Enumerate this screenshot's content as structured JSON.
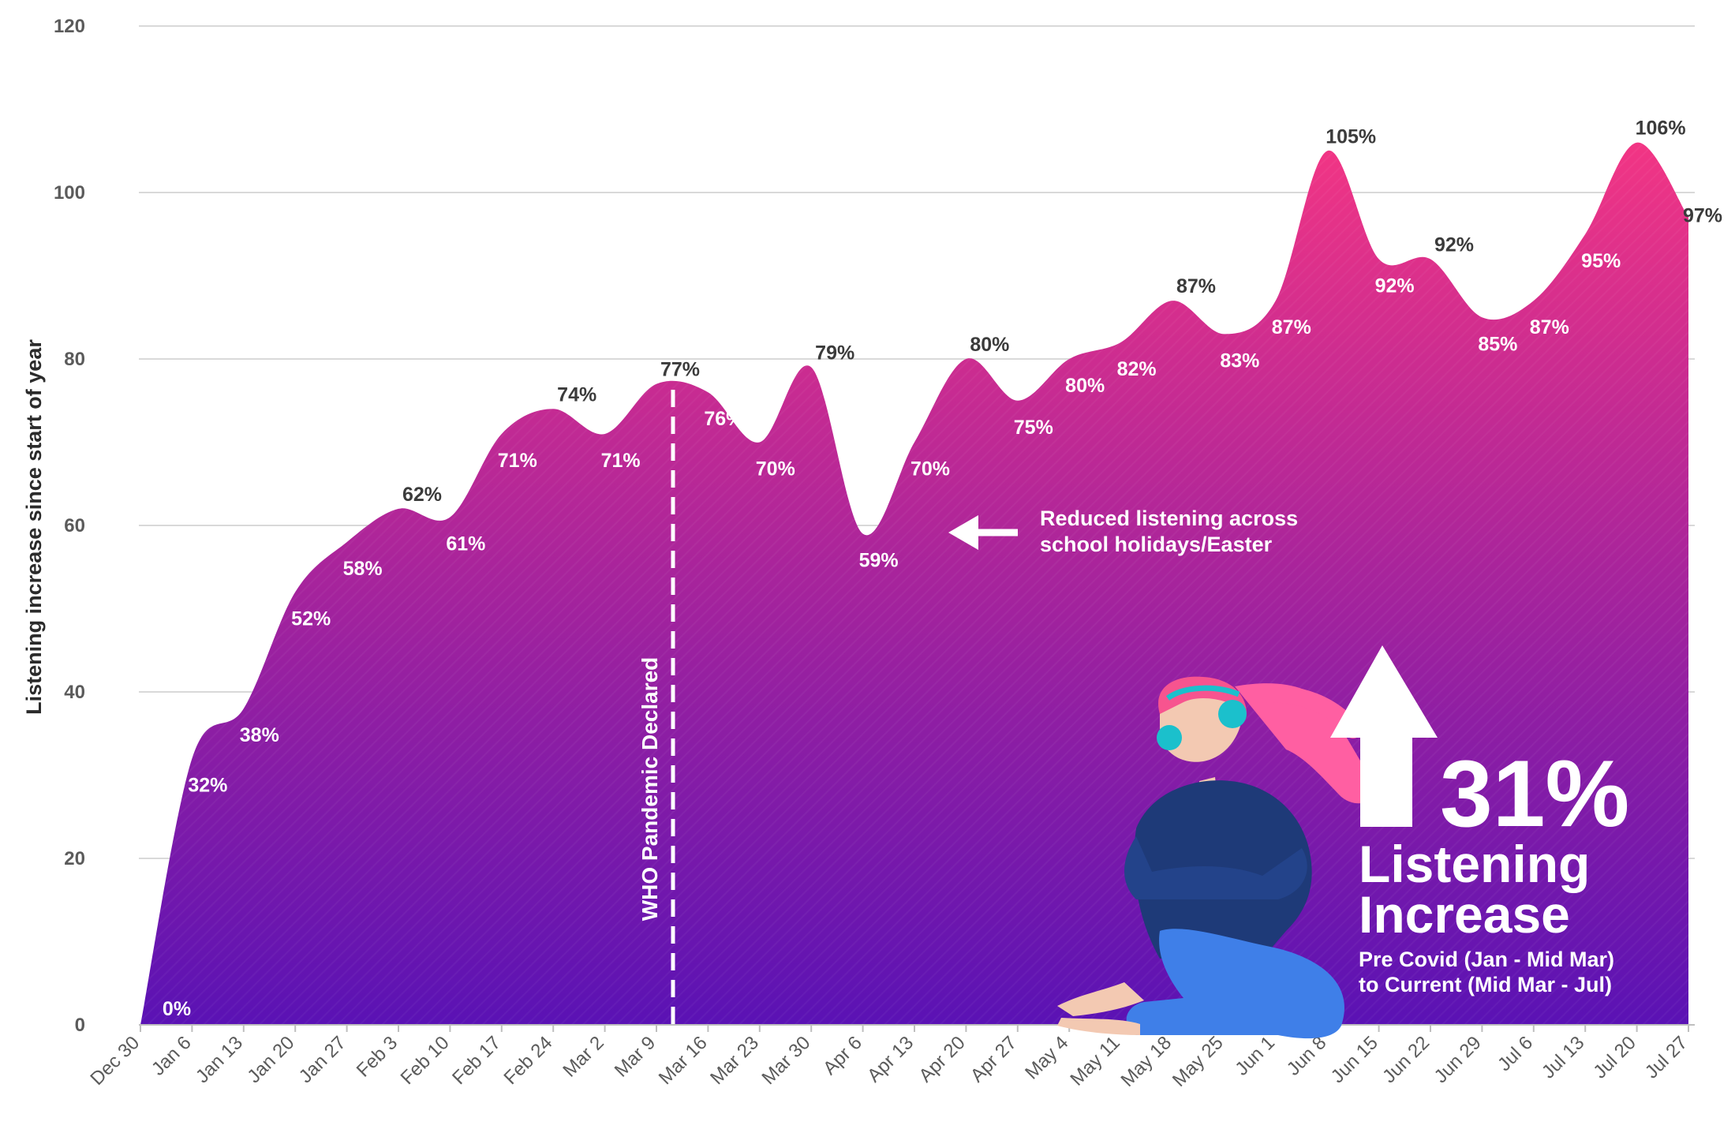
{
  "chart_data": {
    "type": "area",
    "ylabel": "Listening increase since start of year",
    "xlabel": "",
    "ylim": [
      0,
      120
    ],
    "yticks": [
      0,
      20,
      40,
      60,
      80,
      100,
      120
    ],
    "grid": true,
    "categories": [
      "Dec 30",
      "Jan 6",
      "Jan 13",
      "Jan 20",
      "Jan 27",
      "Feb 3",
      "Feb 10",
      "Feb 17",
      "Feb 24",
      "Mar 2",
      "Mar 9",
      "Mar 16",
      "Mar 23",
      "Mar 30",
      "Apr 6",
      "Apr 13",
      "Apr 20",
      "Apr 27",
      "May 4",
      "May 11",
      "May 18",
      "May 25",
      "Jun 1",
      "Jun 8",
      "Jun 15",
      "Jun 22",
      "Jun 29",
      "Jul 6",
      "Jul 13",
      "Jul 20",
      "Jul 27"
    ],
    "values": [
      0,
      32,
      38,
      52,
      58,
      62,
      61,
      71,
      74,
      71,
      77,
      76,
      70,
      79,
      59,
      70,
      80,
      75,
      80,
      82,
      87,
      83,
      87,
      105,
      92,
      92,
      85,
      87,
      95,
      106,
      97
    ],
    "labels": [
      "0%",
      "32%",
      "38%",
      "52%",
      "58%",
      "62%",
      "61%",
      "71%",
      "74%",
      "71%",
      "77%",
      "76%",
      "70%",
      "79%",
      "59%",
      "70%",
      "80%",
      "75%",
      "80%",
      "82%",
      "87%",
      "83%",
      "87%",
      "105%",
      "92%",
      "92%",
      "85%",
      "87%",
      "95%",
      "106%",
      "97%"
    ],
    "colors": {
      "top": "#f23584",
      "bottom": "#5a12b4",
      "grid": "#d9d9d9"
    }
  },
  "annotations": {
    "pandemic": "WHO Pandemic Declared",
    "holiday_line1": "Reduced listening across",
    "holiday_line2": "school holidays/Easter",
    "headline_value": "31%",
    "headline_line1": "Listening",
    "headline_line2": "Increase",
    "sub_line1": "Pre Covid (Jan - Mid Mar)",
    "sub_line2": "to Current (Mid Mar - Jul)"
  }
}
